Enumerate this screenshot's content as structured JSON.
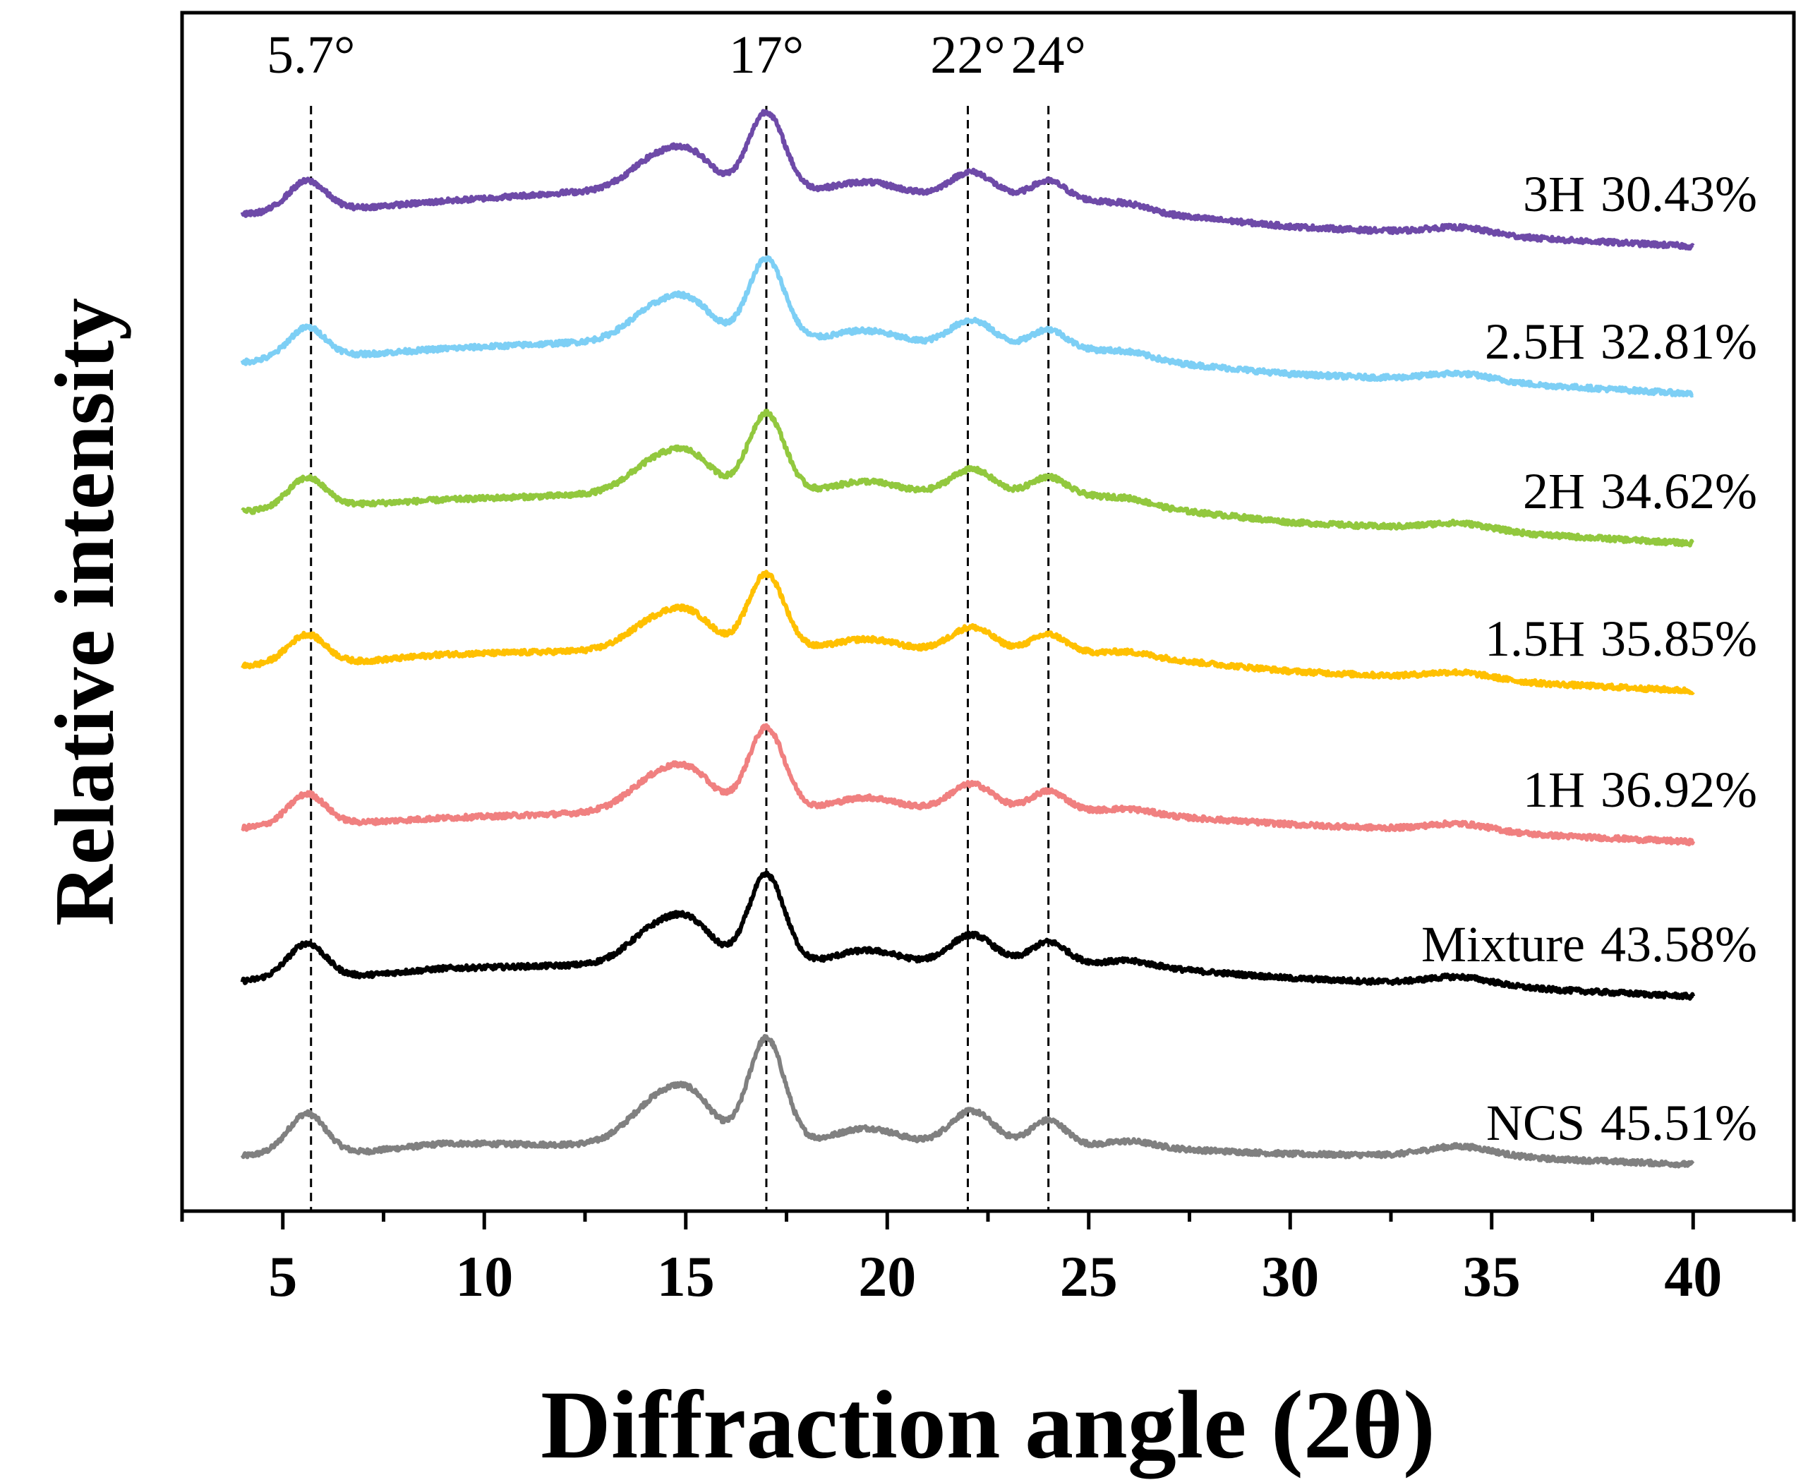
{
  "chart_data": {
    "type": "line",
    "title": "",
    "xlabel": "Diffraction angle (2θ)",
    "ylabel": "Relative intensity",
    "xlim": [
      2.5,
      42.5
    ],
    "x_range": [
      4,
      40
    ],
    "xticks_major": [
      5,
      10,
      15,
      20,
      25,
      30,
      35,
      40
    ],
    "xticks_minor": [
      2.5,
      7.5,
      12.5,
      17.5,
      22.5,
      27.5,
      32.5,
      37.5,
      42.5
    ],
    "y_ticks_shown": false,
    "grid": false,
    "legend": "none",
    "reference_lines": [
      {
        "x": 5.7,
        "label": "5.7°"
      },
      {
        "x": 17,
        "label": "17°"
      },
      {
        "x": 22,
        "label": "22°"
      },
      {
        "x": 24,
        "label": "24°"
      }
    ],
    "series": [
      {
        "name": "NCS",
        "value_label": "45.51%",
        "color": "#808080",
        "offset": 0,
        "peak_scale": 1.0,
        "baseline": [
          [
            4,
            27
          ],
          [
            5,
            32
          ],
          [
            7,
            33
          ],
          [
            9,
            45
          ],
          [
            12,
            43
          ],
          [
            14,
            45
          ],
          [
            17,
            44
          ],
          [
            25,
            39
          ],
          [
            27,
            37
          ],
          [
            30,
            30
          ],
          [
            35,
            26
          ],
          [
            40,
            15
          ]
        ]
      },
      {
        "name": "Mixture",
        "value_label": "43.58%",
        "color": "#000000",
        "offset": 253,
        "peak_scale": 0.85,
        "baseline": [
          [
            4,
            22
          ],
          [
            5,
            28
          ],
          [
            7,
            30
          ],
          [
            9,
            40
          ],
          [
            12,
            44
          ],
          [
            14,
            46
          ],
          [
            17,
            45
          ],
          [
            25,
            45
          ],
          [
            27,
            39
          ],
          [
            30,
            26
          ],
          [
            35,
            14
          ],
          [
            40,
            0
          ]
        ]
      },
      {
        "name": "1H",
        "value_label": "36.92%",
        "color": "#F08080",
        "offset": 472,
        "peak_scale": 0.78,
        "baseline": [
          [
            4,
            20
          ],
          [
            5,
            24
          ],
          [
            7,
            28
          ],
          [
            9,
            34
          ],
          [
            12,
            40
          ],
          [
            14,
            45
          ],
          [
            17,
            45
          ],
          [
            25,
            42
          ],
          [
            27,
            36
          ],
          [
            30,
            25
          ],
          [
            35,
            13
          ],
          [
            40,
            0
          ]
        ]
      },
      {
        "name": "1.5H",
        "value_label": "35.85%",
        "color": "#FFC000",
        "offset": 686,
        "peak_scale": 0.72,
        "baseline": [
          [
            4,
            35
          ],
          [
            5,
            40
          ],
          [
            7,
            42
          ],
          [
            9,
            52
          ],
          [
            12,
            56
          ],
          [
            14,
            58
          ],
          [
            17,
            58
          ],
          [
            25,
            52
          ],
          [
            27,
            44
          ],
          [
            30,
            28
          ],
          [
            35,
            14
          ],
          [
            40,
            0
          ]
        ]
      },
      {
        "name": "2H",
        "value_label": "34.62%",
        "color": "#92C83E",
        "offset": 895,
        "peak_scale": 0.75,
        "baseline": [
          [
            4,
            45
          ],
          [
            5,
            50
          ],
          [
            7,
            56
          ],
          [
            9,
            62
          ],
          [
            12,
            68
          ],
          [
            14,
            72
          ],
          [
            17,
            72
          ],
          [
            25,
            65
          ],
          [
            27,
            48
          ],
          [
            30,
            30
          ],
          [
            35,
            16
          ],
          [
            40,
            0
          ]
        ]
      },
      {
        "name": "2.5H",
        "value_label": "32.81%",
        "color": "#7DCFF5",
        "offset": 1107,
        "peak_scale": 0.77,
        "baseline": [
          [
            4,
            45
          ],
          [
            5,
            50
          ],
          [
            7,
            56
          ],
          [
            9,
            64
          ],
          [
            12,
            72
          ],
          [
            14,
            76
          ],
          [
            17,
            76
          ],
          [
            25,
            60
          ],
          [
            27,
            44
          ],
          [
            30,
            28
          ],
          [
            35,
            16
          ],
          [
            40,
            0
          ]
        ]
      },
      {
        "name": "3H",
        "value_label": "30.43%",
        "color": "#6E4AA8",
        "offset": 1316,
        "peak_scale": 0.75,
        "baseline": [
          [
            4,
            45
          ],
          [
            5,
            50
          ],
          [
            7,
            55
          ],
          [
            9,
            64
          ],
          [
            12,
            76
          ],
          [
            14,
            80
          ],
          [
            17,
            78
          ],
          [
            25,
            62
          ],
          [
            27,
            44
          ],
          [
            30,
            28
          ],
          [
            35,
            14
          ],
          [
            40,
            0
          ]
        ]
      }
    ],
    "peaks": [
      {
        "x": 5.6,
        "height": 55,
        "width": 0.45
      },
      {
        "x": 14.3,
        "height": 58,
        "width": 0.7
      },
      {
        "x": 15.2,
        "height": 50,
        "width": 0.55
      },
      {
        "x": 17.0,
        "height": 150,
        "width": 0.45
      },
      {
        "x": 19.5,
        "height": 24,
        "width": 0.8
      },
      {
        "x": 22.1,
        "height": 50,
        "width": 0.55
      },
      {
        "x": 24.0,
        "height": 38,
        "width": 0.45
      },
      {
        "x": 26.0,
        "height": 10,
        "width": 0.6
      },
      {
        "x": 34.2,
        "height": 14,
        "width": 0.8
      }
    ]
  }
}
